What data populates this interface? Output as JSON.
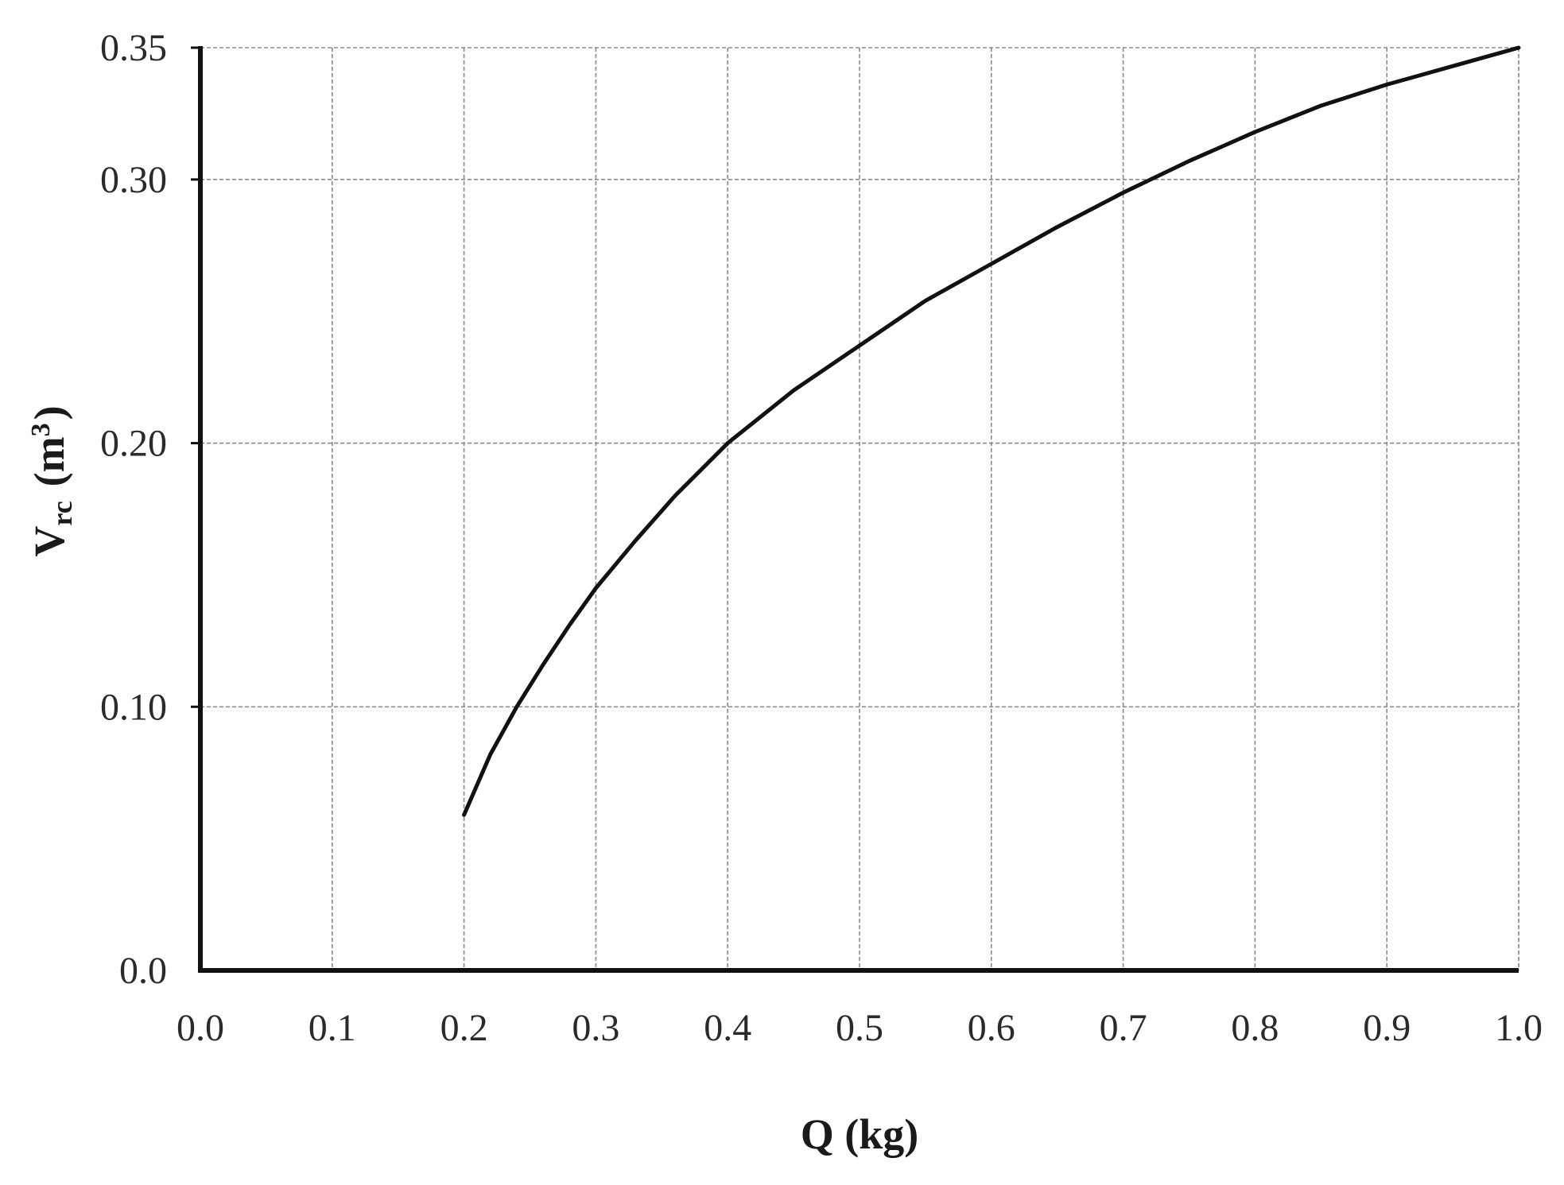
{
  "chart_data": {
    "type": "line",
    "title": "",
    "xlabel": "Q (kg)",
    "ylabel": {
      "main": "V",
      "subscript": "rc",
      "open": "(m",
      "superscript": "3",
      "close": ")"
    },
    "xlim": [
      0.0,
      1.0
    ],
    "ylim": [
      0.0,
      0.35
    ],
    "x_ticks": [
      0.0,
      0.1,
      0.2,
      0.3,
      0.4,
      0.5,
      0.6,
      0.7,
      0.8,
      0.9,
      1.0
    ],
    "x_tick_labels": [
      "0.0",
      "0.1",
      "0.2",
      "0.3",
      "0.4",
      "0.5",
      "0.6",
      "0.7",
      "0.8",
      "0.9",
      "1.0"
    ],
    "y_ticks": [
      0.0,
      0.1,
      0.2,
      0.3,
      0.35
    ],
    "y_tick_labels": [
      "0.0",
      "0.10",
      "0.20",
      "0.30",
      "0.35"
    ],
    "grid": true,
    "legend": "none",
    "series": [
      {
        "color": "#111111",
        "x": [
          0.2,
          0.22,
          0.24,
          0.26,
          0.28,
          0.3,
          0.33,
          0.36,
          0.4,
          0.45,
          0.5,
          0.55,
          0.6,
          0.65,
          0.7,
          0.75,
          0.8,
          0.85,
          0.9,
          0.95,
          1.0
        ],
        "y": [
          0.059,
          0.082,
          0.1,
          0.116,
          0.131,
          0.145,
          0.163,
          0.18,
          0.2,
          0.22,
          0.237,
          0.254,
          0.268,
          0.282,
          0.295,
          0.307,
          0.318,
          0.328,
          0.336,
          0.343,
          0.35
        ]
      }
    ]
  }
}
